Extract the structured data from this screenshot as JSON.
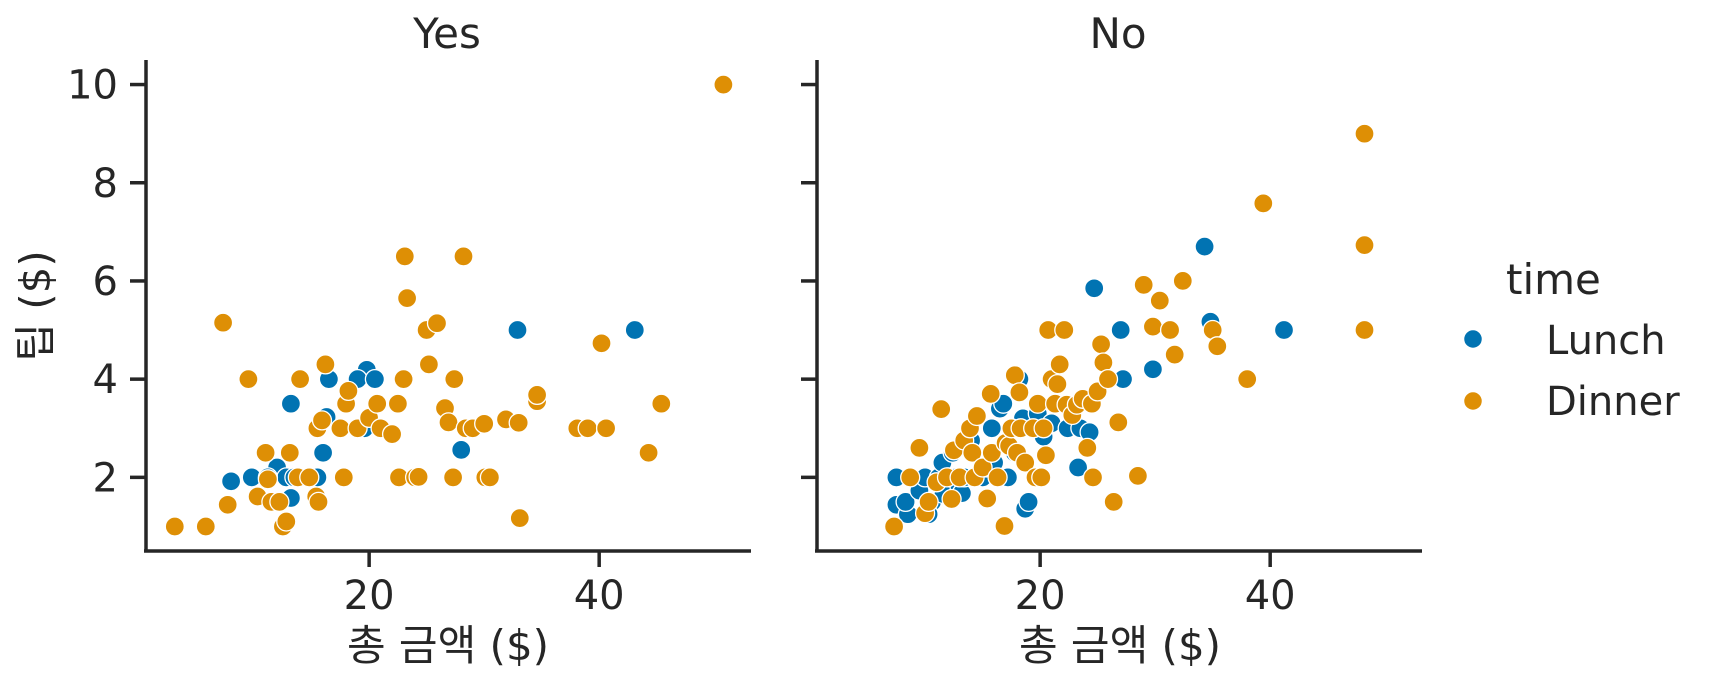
{
  "chart_data": {
    "type": "scatter",
    "facet_variable": "smoker",
    "ylabel": "팁 ($)",
    "ylim": [
      0.5,
      10.5
    ],
    "yticks": [
      2,
      4,
      6,
      8,
      10
    ],
    "xticks": [
      20,
      40
    ],
    "legend": {
      "title": "time",
      "placement": "right",
      "entries": [
        {
          "name": "Lunch",
          "color": "#0173b2"
        },
        {
          "name": "Dinner",
          "color": "#de8f05"
        }
      ]
    },
    "panels": [
      {
        "title": "Yes",
        "xlabel": "총 금액 ($)",
        "xlim": [
          0.6,
          53.2
        ],
        "series": [
          {
            "name": "Lunch",
            "color": "#0173b2",
            "points": [
              [
                8.0,
                1.92
              ],
              [
                9.8,
                2.0
              ],
              [
                12.0,
                2.2
              ],
              [
                12.8,
                2.0
              ],
              [
                13.2,
                3.5
              ],
              [
                13.2,
                1.58
              ],
              [
                13.5,
                2.0
              ],
              [
                15.0,
                2.0
              ],
              [
                15.5,
                2.0
              ],
              [
                16.0,
                2.5
              ],
              [
                16.3,
                3.23
              ],
              [
                16.5,
                4.0
              ],
              [
                19.6,
                3.0
              ],
              [
                19.8,
                4.19
              ],
              [
                19.0,
                4.0
              ],
              [
                20.5,
                4.0
              ],
              [
                28.0,
                2.56
              ],
              [
                32.9,
                5.0
              ],
              [
                43.1,
                5.0
              ],
              [
                11.2,
                2.0
              ],
              [
                14.6,
                2.0
              ]
            ]
          },
          {
            "name": "Dinner",
            "color": "#de8f05",
            "points": [
              [
                3.1,
                1.0
              ],
              [
                5.8,
                1.0
              ],
              [
                7.3,
                5.15
              ],
              [
                7.7,
                1.44
              ],
              [
                9.5,
                4.0
              ],
              [
                10.3,
                1.61
              ],
              [
                11.0,
                2.5
              ],
              [
                11.2,
                1.96
              ],
              [
                11.5,
                1.5
              ],
              [
                12.2,
                1.5
              ],
              [
                12.5,
                1.0
              ],
              [
                12.8,
                1.1
              ],
              [
                13.1,
                2.5
              ],
              [
                13.8,
                2.0
              ],
              [
                14.0,
                4.0
              ],
              [
                14.8,
                2.0
              ],
              [
                15.4,
                1.61
              ],
              [
                15.5,
                3.0
              ],
              [
                15.6,
                1.5
              ],
              [
                15.9,
                3.16
              ],
              [
                16.2,
                4.3
              ],
              [
                17.5,
                3.0
              ],
              [
                18.0,
                3.5
              ],
              [
                18.2,
                3.76
              ],
              [
                17.8,
                2.0
              ],
              [
                19.0,
                3.0
              ],
              [
                20.0,
                3.21
              ],
              [
                20.7,
                3.5
              ],
              [
                21.0,
                3.0
              ],
              [
                22.0,
                2.88
              ],
              [
                22.5,
                3.5
              ],
              [
                22.6,
                2.0
              ],
              [
                23.0,
                4.0
              ],
              [
                23.1,
                6.5
              ],
              [
                23.3,
                5.65
              ],
              [
                24.0,
                2.0
              ],
              [
                24.3,
                2.01
              ],
              [
                25.0,
                5.0
              ],
              [
                25.2,
                4.3
              ],
              [
                25.9,
                5.14
              ],
              [
                26.6,
                3.41
              ],
              [
                26.9,
                3.12
              ],
              [
                27.3,
                2.0
              ],
              [
                27.4,
                4.0
              ],
              [
                28.2,
                6.5
              ],
              [
                28.4,
                3.0
              ],
              [
                29.0,
                3.0
              ],
              [
                30.0,
                3.09
              ],
              [
                30.1,
                2.0
              ],
              [
                30.5,
                2.0
              ],
              [
                31.9,
                3.18
              ],
              [
                33.0,
                3.11
              ],
              [
                33.1,
                1.17
              ],
              [
                34.6,
                3.55
              ],
              [
                34.6,
                3.68
              ],
              [
                38.1,
                3.0
              ],
              [
                39.0,
                3.0
              ],
              [
                40.2,
                4.73
              ],
              [
                40.6,
                3.0
              ],
              [
                44.3,
                2.5
              ],
              [
                45.4,
                3.5
              ],
              [
                50.8,
                10.0
              ]
            ]
          }
        ]
      },
      {
        "title": "No",
        "xlabel": "총 금액 ($)",
        "xlim": [
          0.6,
          53.2
        ],
        "series": [
          {
            "name": "Lunch",
            "color": "#0173b2",
            "points": [
              [
                7.5,
                2.0
              ],
              [
                7.5,
                1.44
              ],
              [
                8.5,
                1.25
              ],
              [
                8.3,
                1.5
              ],
              [
                9.5,
                1.73
              ],
              [
                10.0,
                2.0
              ],
              [
                10.6,
                1.5
              ],
              [
                10.3,
                1.25
              ],
              [
                11.2,
                2.0
              ],
              [
                11.5,
                2.3
              ],
              [
                11.6,
                1.66
              ],
              [
                12.0,
                2.0
              ],
              [
                12.4,
                2.5
              ],
              [
                12.7,
                2.0
              ],
              [
                13.0,
                1.8
              ],
              [
                13.2,
                1.68
              ],
              [
                13.4,
                2.0
              ],
              [
                14.0,
                2.75
              ],
              [
                14.5,
                2.0
              ],
              [
                15.0,
                2.0
              ],
              [
                15.3,
                2.2
              ],
              [
                15.8,
                3.0
              ],
              [
                16.0,
                2.3
              ],
              [
                16.5,
                3.4
              ],
              [
                16.8,
                3.5
              ],
              [
                17.2,
                2.0
              ],
              [
                17.8,
                2.5
              ],
              [
                18.2,
                4.0
              ],
              [
                18.5,
                3.2
              ],
              [
                18.7,
                1.36
              ],
              [
                19.0,
                1.5
              ],
              [
                19.8,
                3.3
              ],
              [
                20.3,
                2.83
              ],
              [
                21.0,
                3.1
              ],
              [
                22.4,
                3.0
              ],
              [
                23.3,
                2.2
              ],
              [
                23.5,
                3.0
              ],
              [
                24.3,
                2.92
              ],
              [
                24.7,
                5.85
              ],
              [
                27.0,
                5.0
              ],
              [
                27.2,
                4.0
              ],
              [
                29.8,
                4.2
              ],
              [
                34.3,
                6.7
              ],
              [
                34.8,
                5.17
              ],
              [
                41.2,
                5.0
              ]
            ]
          },
          {
            "name": "Dinner",
            "color": "#de8f05",
            "points": [
              [
                7.3,
                1.0
              ],
              [
                8.7,
                2.0
              ],
              [
                9.5,
                2.6
              ],
              [
                10.0,
                1.27
              ],
              [
                10.3,
                1.5
              ],
              [
                11.0,
                1.9
              ],
              [
                11.4,
                3.39
              ],
              [
                11.9,
                2.0
              ],
              [
                12.3,
                1.56
              ],
              [
                12.5,
                2.55
              ],
              [
                13.0,
                2.0
              ],
              [
                13.4,
                2.75
              ],
              [
                13.9,
                3.0
              ],
              [
                14.1,
                2.5
              ],
              [
                14.3,
                2.0
              ],
              [
                14.5,
                3.25
              ],
              [
                15.0,
                2.2
              ],
              [
                15.4,
                1.57
              ],
              [
                15.7,
                3.7
              ],
              [
                15.8,
                2.5
              ],
              [
                16.3,
                2.0
              ],
              [
                16.9,
                1.01
              ],
              [
                17.0,
                2.7
              ],
              [
                17.3,
                2.64
              ],
              [
                17.5,
                3.0
              ],
              [
                17.8,
                4.08
              ],
              [
                18.0,
                2.5
              ],
              [
                18.2,
                3.73
              ],
              [
                18.3,
                3.0
              ],
              [
                18.7,
                2.3
              ],
              [
                19.4,
                3.0
              ],
              [
                19.6,
                2.0
              ],
              [
                19.8,
                3.5
              ],
              [
                20.1,
                2.0
              ],
              [
                20.3,
                3.0
              ],
              [
                20.5,
                2.45
              ],
              [
                20.7,
                5.0
              ],
              [
                21.0,
                4.0
              ],
              [
                21.3,
                3.5
              ],
              [
                21.5,
                3.9
              ],
              [
                21.7,
                4.3
              ],
              [
                22.1,
                5.0
              ],
              [
                22.3,
                3.48
              ],
              [
                22.8,
                3.27
              ],
              [
                23.2,
                3.48
              ],
              [
                23.7,
                3.6
              ],
              [
                24.1,
                2.6
              ],
              [
                24.5,
                3.5
              ],
              [
                24.6,
                2.0
              ],
              [
                25.0,
                3.75
              ],
              [
                25.3,
                4.71
              ],
              [
                25.5,
                4.34
              ],
              [
                25.9,
                4.0
              ],
              [
                26.4,
                1.5
              ],
              [
                26.8,
                3.12
              ],
              [
                28.5,
                2.03
              ],
              [
                29.0,
                5.92
              ],
              [
                29.8,
                5.07
              ],
              [
                30.4,
                5.6
              ],
              [
                31.3,
                5.0
              ],
              [
                31.7,
                4.5
              ],
              [
                32.4,
                6.0
              ],
              [
                35.0,
                5.0
              ],
              [
                35.4,
                4.67
              ],
              [
                38.0,
                4.0
              ],
              [
                39.4,
                7.58
              ],
              [
                48.2,
                9.0
              ],
              [
                48.2,
                6.73
              ],
              [
                48.2,
                5.0
              ]
            ]
          }
        ]
      }
    ]
  }
}
